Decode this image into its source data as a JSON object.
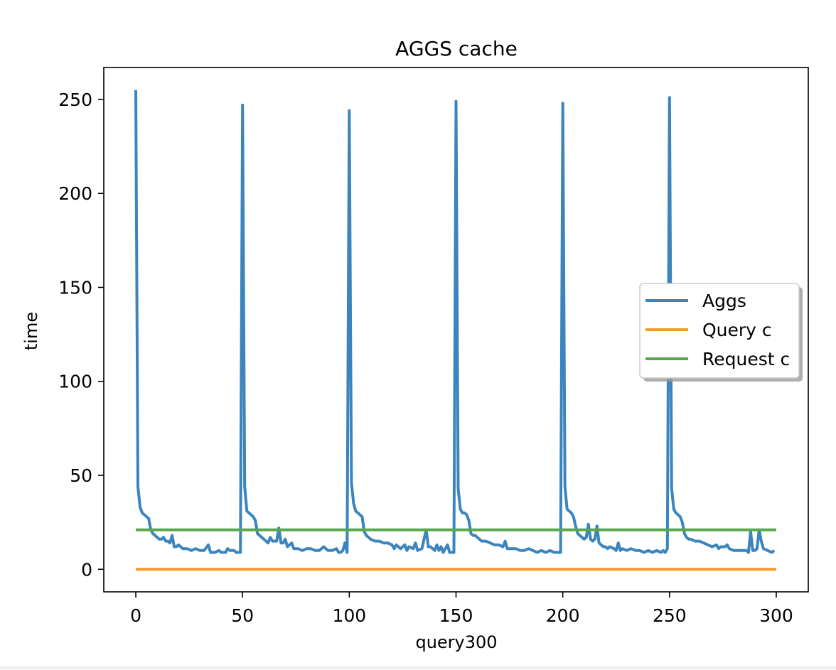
{
  "chart_data": {
    "type": "line",
    "title": "AGGS cache",
    "xlabel": "query300",
    "ylabel": "time",
    "xlim": [
      -15,
      315
    ],
    "ylim": [
      -12,
      267
    ],
    "x_ticks": [
      0,
      50,
      100,
      150,
      200,
      250,
      300
    ],
    "y_ticks": [
      0,
      50,
      100,
      150,
      200,
      250
    ],
    "grid": false,
    "legend_position": "center-right",
    "series": [
      {
        "name": "Aggs",
        "color": "#3b84bd",
        "points": [
          [
            0,
            255
          ],
          [
            1,
            44
          ],
          [
            2,
            33
          ],
          [
            3,
            30
          ],
          [
            4,
            29
          ],
          [
            5,
            28
          ],
          [
            6,
            27
          ],
          [
            7,
            21
          ],
          [
            8,
            19
          ],
          [
            9,
            18
          ],
          [
            10,
            17
          ],
          [
            11,
            16
          ],
          [
            12,
            16
          ],
          [
            13,
            17
          ],
          [
            14,
            15
          ],
          [
            15,
            15
          ],
          [
            16,
            14
          ],
          [
            17,
            18
          ],
          [
            18,
            12
          ],
          [
            19,
            12
          ],
          [
            20,
            13
          ],
          [
            21,
            12
          ],
          [
            22,
            11
          ],
          [
            24,
            11
          ],
          [
            26,
            10
          ],
          [
            28,
            11
          ],
          [
            30,
            10
          ],
          [
            32,
            10
          ],
          [
            34,
            13
          ],
          [
            35,
            9
          ],
          [
            37,
            9
          ],
          [
            39,
            10
          ],
          [
            40,
            9
          ],
          [
            42,
            9
          ],
          [
            43,
            11
          ],
          [
            44,
            10
          ],
          [
            45,
            10
          ],
          [
            46,
            10
          ],
          [
            47,
            9
          ],
          [
            48,
            9
          ],
          [
            49,
            9
          ],
          [
            50,
            247
          ],
          [
            51,
            44
          ],
          [
            52,
            31
          ],
          [
            53,
            30
          ],
          [
            54,
            29
          ],
          [
            55,
            28
          ],
          [
            56,
            26
          ],
          [
            57,
            19
          ],
          [
            58,
            18
          ],
          [
            59,
            17
          ],
          [
            60,
            16
          ],
          [
            61,
            15
          ],
          [
            62,
            14
          ],
          [
            63,
            17
          ],
          [
            64,
            15
          ],
          [
            65,
            15
          ],
          [
            66,
            15
          ],
          [
            67,
            22
          ],
          [
            68,
            14
          ],
          [
            69,
            14
          ],
          [
            70,
            16
          ],
          [
            71,
            12
          ],
          [
            72,
            13
          ],
          [
            73,
            14
          ],
          [
            74,
            11
          ],
          [
            76,
            11
          ],
          [
            78,
            10
          ],
          [
            80,
            11
          ],
          [
            82,
            11
          ],
          [
            84,
            10
          ],
          [
            86,
            10
          ],
          [
            88,
            12
          ],
          [
            90,
            10
          ],
          [
            92,
            10
          ],
          [
            94,
            11
          ],
          [
            95,
            9
          ],
          [
            96,
            9
          ],
          [
            97,
            10
          ],
          [
            98,
            14
          ],
          [
            99,
            9
          ],
          [
            100,
            244
          ],
          [
            101,
            46
          ],
          [
            102,
            35
          ],
          [
            103,
            31
          ],
          [
            104,
            30
          ],
          [
            105,
            29
          ],
          [
            106,
            28
          ],
          [
            107,
            20
          ],
          [
            108,
            18
          ],
          [
            109,
            17
          ],
          [
            110,
            16
          ],
          [
            112,
            15
          ],
          [
            114,
            15
          ],
          [
            116,
            14
          ],
          [
            118,
            14
          ],
          [
            120,
            13
          ],
          [
            121,
            11
          ],
          [
            122,
            13
          ],
          [
            124,
            11
          ],
          [
            126,
            13
          ],
          [
            127,
            10
          ],
          [
            128,
            12
          ],
          [
            130,
            11
          ],
          [
            131,
            14
          ],
          [
            132,
            10
          ],
          [
            134,
            11
          ],
          [
            136,
            21
          ],
          [
            137,
            12
          ],
          [
            138,
            12
          ],
          [
            140,
            10
          ],
          [
            141,
            13
          ],
          [
            142,
            10
          ],
          [
            143,
            12
          ],
          [
            144,
            9
          ],
          [
            145,
            11
          ],
          [
            146,
            13
          ],
          [
            147,
            9
          ],
          [
            148,
            9
          ],
          [
            149,
            9
          ],
          [
            150,
            249
          ],
          [
            151,
            43
          ],
          [
            152,
            32
          ],
          [
            153,
            30
          ],
          [
            154,
            30
          ],
          [
            155,
            29
          ],
          [
            156,
            26
          ],
          [
            157,
            19
          ],
          [
            158,
            18
          ],
          [
            159,
            18
          ],
          [
            160,
            17
          ],
          [
            162,
            15
          ],
          [
            164,
            15
          ],
          [
            166,
            14
          ],
          [
            168,
            13
          ],
          [
            170,
            13
          ],
          [
            172,
            12
          ],
          [
            173,
            15
          ],
          [
            174,
            11
          ],
          [
            176,
            11
          ],
          [
            178,
            11
          ],
          [
            180,
            10
          ],
          [
            182,
            10
          ],
          [
            184,
            11
          ],
          [
            186,
            10
          ],
          [
            188,
            9
          ],
          [
            190,
            10
          ],
          [
            192,
            9
          ],
          [
            194,
            10
          ],
          [
            196,
            9
          ],
          [
            197,
            9
          ],
          [
            198,
            9
          ],
          [
            199,
            9
          ],
          [
            200,
            248
          ],
          [
            201,
            44
          ],
          [
            202,
            32
          ],
          [
            203,
            31
          ],
          [
            204,
            30
          ],
          [
            205,
            28
          ],
          [
            206,
            23
          ],
          [
            207,
            19
          ],
          [
            208,
            18
          ],
          [
            209,
            17
          ],
          [
            210,
            16
          ],
          [
            211,
            17
          ],
          [
            212,
            24
          ],
          [
            213,
            16
          ],
          [
            214,
            15
          ],
          [
            215,
            16
          ],
          [
            216,
            23
          ],
          [
            217,
            14
          ],
          [
            218,
            13
          ],
          [
            219,
            12
          ],
          [
            220,
            12
          ],
          [
            221,
            11
          ],
          [
            222,
            12
          ],
          [
            224,
            11
          ],
          [
            225,
            10
          ],
          [
            226,
            14
          ],
          [
            227,
            10
          ],
          [
            228,
            11
          ],
          [
            230,
            10
          ],
          [
            232,
            11
          ],
          [
            234,
            10
          ],
          [
            236,
            10
          ],
          [
            238,
            9
          ],
          [
            240,
            10
          ],
          [
            242,
            9
          ],
          [
            244,
            10
          ],
          [
            246,
            9
          ],
          [
            247,
            10
          ],
          [
            248,
            9
          ],
          [
            249,
            11
          ],
          [
            250,
            251
          ],
          [
            251,
            43
          ],
          [
            252,
            32
          ],
          [
            253,
            30
          ],
          [
            254,
            29
          ],
          [
            255,
            28
          ],
          [
            256,
            25
          ],
          [
            257,
            19
          ],
          [
            258,
            17
          ],
          [
            259,
            16
          ],
          [
            260,
            16
          ],
          [
            262,
            15
          ],
          [
            264,
            15
          ],
          [
            266,
            14
          ],
          [
            268,
            13
          ],
          [
            270,
            12
          ],
          [
            272,
            13
          ],
          [
            273,
            11
          ],
          [
            274,
            12
          ],
          [
            276,
            12
          ],
          [
            277,
            13
          ],
          [
            278,
            11
          ],
          [
            280,
            10
          ],
          [
            282,
            10
          ],
          [
            284,
            10
          ],
          [
            286,
            10
          ],
          [
            287,
            9
          ],
          [
            288,
            20
          ],
          [
            289,
            10
          ],
          [
            290,
            10
          ],
          [
            291,
            11
          ],
          [
            292,
            21
          ],
          [
            293,
            15
          ],
          [
            294,
            11
          ],
          [
            296,
            10
          ],
          [
            298,
            9
          ],
          [
            299,
            10
          ]
        ]
      },
      {
        "name": "Query c",
        "color": "#f39a2c",
        "points": [
          [
            0,
            0
          ],
          [
            300,
            0
          ]
        ]
      },
      {
        "name": "Request c",
        "color": "#56a84a",
        "points": [
          [
            0,
            21
          ],
          [
            300,
            21
          ]
        ]
      }
    ]
  }
}
